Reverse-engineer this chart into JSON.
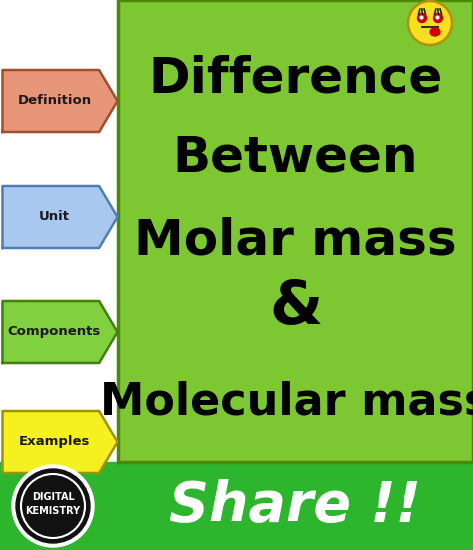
{
  "bg_color": "#ffffff",
  "green_box_color": "#7dc832",
  "green_box_border": "#4a8a08",
  "footer_green": "#2db52d",
  "main_text_lines": [
    "Difference",
    "Between",
    "Molar mass",
    "&",
    "Molecular mass"
  ],
  "main_text_color": "#000000",
  "share_text": "Share !!",
  "share_text_color": "#ffffff",
  "arrow_labels": [
    {
      "text": "Definition",
      "fill": "#e8967a",
      "edge": "#a05030"
    },
    {
      "text": "Unit",
      "fill": "#a8c8f0",
      "edge": "#5080b0"
    },
    {
      "text": "Components",
      "fill": "#80d040",
      "edge": "#408010"
    },
    {
      "text": "Examples",
      "fill": "#f5f020",
      "edge": "#a09010"
    }
  ],
  "emoji_face_color": "#f8e020",
  "emoji_outline": "#b09010",
  "logo_circle_color": "#111111",
  "logo_text1": "DIGITAL",
  "logo_text2": "KEMISTRY"
}
